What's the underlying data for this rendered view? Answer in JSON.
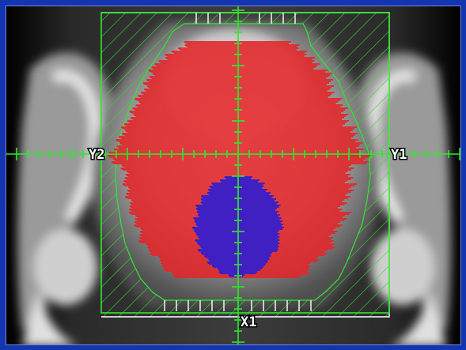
{
  "window": {
    "background": "#1336b0",
    "viewport_background": "#000000"
  },
  "labels": {
    "y1": "Y1",
    "y2": "Y2",
    "x1": "X1"
  },
  "colors": {
    "crosshair": "#2ee82e",
    "field_outline": "#2ee82e",
    "hatch": "#35d935",
    "dose_outer": "#e3262a",
    "dose_inner": "#2a1fd9",
    "collimator_edge": "#ffffff"
  }
}
